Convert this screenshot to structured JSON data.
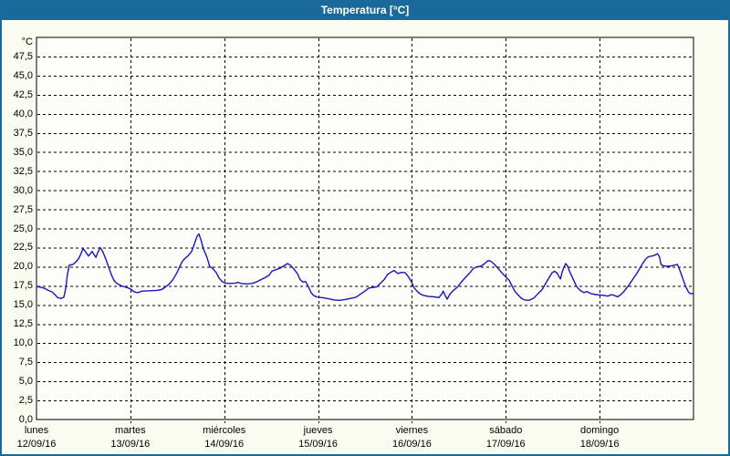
{
  "window": {
    "title": "Temperatura [°C]"
  },
  "colors": {
    "titlebar": "#1a699b",
    "window_border": "#1a699b",
    "content_bg": "#fafcf1",
    "plot_bg": "#fdfefa",
    "grid": "#000000",
    "line": "#1616bb",
    "title_text": "#ffffff"
  },
  "chart_data": {
    "type": "line",
    "title": "Temperatura [°C]",
    "y_unit_label": "°C",
    "ylim": [
      0,
      50
    ],
    "x_hours_range": [
      0,
      168
    ],
    "grid": "dashed",
    "legend": "none",
    "y_ticks": {
      "values": [
        0,
        2.5,
        5,
        7.5,
        10,
        12.5,
        15,
        17.5,
        20,
        22.5,
        25,
        27.5,
        30,
        32.5,
        35,
        37.5,
        40,
        42.5,
        45,
        47.5
      ],
      "labels": [
        "0,0",
        "2,5",
        "5,0",
        "7,5",
        "10,0",
        "12,5",
        "15,0",
        "17,5",
        "20,0",
        "22,5",
        "25,0",
        "27,5",
        "30,0",
        "32,5",
        "35,0",
        "37,5",
        "40,0",
        "42,5",
        "45,0",
        "47,5"
      ]
    },
    "x_days": [
      {
        "name": "lunes",
        "date": "12/09/16"
      },
      {
        "name": "martes",
        "date": "13/09/16"
      },
      {
        "name": "miércoles",
        "date": "14/09/16"
      },
      {
        "name": "jueves",
        "date": "15/09/16"
      },
      {
        "name": "viernes",
        "date": "16/09/16"
      },
      {
        "name": "sábado",
        "date": "17/09/16"
      },
      {
        "name": "domingo",
        "date": "18/09/16"
      }
    ],
    "series": [
      {
        "name": "Temperatura",
        "unit": "°C",
        "points": [
          [
            0,
            17.4
          ],
          [
            1.2,
            17.3
          ],
          [
            2.3,
            17.1
          ],
          [
            3,
            16.9
          ],
          [
            4,
            16.7
          ],
          [
            4.8,
            16.3
          ],
          [
            5.4,
            15.95
          ],
          [
            6.3,
            15.85
          ],
          [
            7,
            16.0
          ],
          [
            7.5,
            17.2
          ],
          [
            7.9,
            19.0
          ],
          [
            8.4,
            20.2
          ],
          [
            9.3,
            20.3
          ],
          [
            10,
            20.6
          ],
          [
            10.7,
            21.0
          ],
          [
            11.3,
            21.6
          ],
          [
            11.9,
            22.4
          ],
          [
            12.6,
            21.9
          ],
          [
            13.3,
            21.4
          ],
          [
            13.8,
            21.7
          ],
          [
            14.2,
            22.0
          ],
          [
            14.7,
            21.6
          ],
          [
            15.2,
            21.2
          ],
          [
            15.6,
            21.8
          ],
          [
            16.3,
            22.5
          ],
          [
            17,
            21.9
          ],
          [
            17.7,
            21.0
          ],
          [
            18.4,
            20.0
          ],
          [
            19.1,
            19.0
          ],
          [
            19.8,
            18.2
          ],
          [
            20.5,
            17.8
          ],
          [
            21.7,
            17.5
          ],
          [
            22.9,
            17.3
          ],
          [
            24,
            17.1
          ],
          [
            25,
            16.7
          ],
          [
            25.9,
            16.6
          ],
          [
            27,
            16.8
          ],
          [
            29,
            16.85
          ],
          [
            30.8,
            16.9
          ],
          [
            32,
            17.0
          ],
          [
            32.9,
            17.3
          ],
          [
            34.1,
            17.8
          ],
          [
            35,
            18.4
          ],
          [
            35.9,
            19.2
          ],
          [
            36.6,
            20.0
          ],
          [
            37.3,
            20.7
          ],
          [
            38,
            21.1
          ],
          [
            38.7,
            21.4
          ],
          [
            39.7,
            22.0
          ],
          [
            40.4,
            23.0
          ],
          [
            41,
            23.9
          ],
          [
            41.5,
            24.3
          ],
          [
            42,
            23.6
          ],
          [
            42.7,
            22.3
          ],
          [
            43.6,
            21.2
          ],
          [
            44.3,
            20.0
          ],
          [
            45,
            19.8
          ],
          [
            46,
            19.2
          ],
          [
            46.7,
            18.5
          ],
          [
            47.6,
            18.0
          ],
          [
            48.3,
            17.85
          ],
          [
            49.5,
            17.8
          ],
          [
            50.9,
            17.85
          ],
          [
            51.6,
            17.95
          ],
          [
            52.3,
            17.8
          ],
          [
            53.7,
            17.75
          ],
          [
            55.1,
            17.8
          ],
          [
            56.2,
            18.0
          ],
          [
            57.4,
            18.3
          ],
          [
            58.6,
            18.6
          ],
          [
            59.5,
            18.9
          ],
          [
            60.2,
            19.4
          ],
          [
            61.1,
            19.6
          ],
          [
            62.3,
            19.8
          ],
          [
            63.2,
            20.1
          ],
          [
            64.2,
            20.4
          ],
          [
            64.9,
            20.2
          ],
          [
            65.8,
            19.7
          ],
          [
            66.7,
            19.1
          ],
          [
            67.4,
            18.3
          ],
          [
            68.1,
            18.0
          ],
          [
            68.8,
            18.05
          ],
          [
            69.5,
            17.4
          ],
          [
            70.2,
            16.6
          ],
          [
            70.9,
            16.2
          ],
          [
            71.9,
            16.0
          ],
          [
            73,
            15.95
          ],
          [
            74.7,
            15.8
          ],
          [
            76.1,
            15.65
          ],
          [
            77.5,
            15.6
          ],
          [
            78.9,
            15.7
          ],
          [
            80.3,
            15.85
          ],
          [
            81.7,
            16.0
          ],
          [
            82.8,
            16.4
          ],
          [
            84,
            16.8
          ],
          [
            84.9,
            17.2
          ],
          [
            86.1,
            17.3
          ],
          [
            87,
            17.35
          ],
          [
            87.9,
            17.8
          ],
          [
            88.9,
            18.3
          ],
          [
            89.8,
            19.0
          ],
          [
            90.7,
            19.3
          ],
          [
            91.4,
            19.5
          ],
          [
            92.4,
            19.1
          ],
          [
            93.3,
            19.25
          ],
          [
            94.3,
            19.2
          ],
          [
            95.2,
            18.6
          ],
          [
            95.9,
            18.0
          ],
          [
            96.6,
            17.2
          ],
          [
            97.3,
            16.8
          ],
          [
            98.2,
            16.4
          ],
          [
            99.2,
            16.2
          ],
          [
            100.3,
            16.1
          ],
          [
            101.7,
            16.05
          ],
          [
            102.9,
            15.95
          ],
          [
            103.6,
            16.4
          ],
          [
            104,
            16.8
          ],
          [
            104.5,
            16.2
          ],
          [
            105,
            15.75
          ],
          [
            105.7,
            16.4
          ],
          [
            106.6,
            16.9
          ],
          [
            107.6,
            17.3
          ],
          [
            108.5,
            17.9
          ],
          [
            109.7,
            18.6
          ],
          [
            110.8,
            19.2
          ],
          [
            111.8,
            19.8
          ],
          [
            112.7,
            20.0
          ],
          [
            113.6,
            20.05
          ],
          [
            114.6,
            20.4
          ],
          [
            115.5,
            20.8
          ],
          [
            116.2,
            20.7
          ],
          [
            117.1,
            20.3
          ],
          [
            118,
            19.8
          ],
          [
            119,
            19.2
          ],
          [
            119.9,
            18.7
          ],
          [
            120.9,
            18.2
          ],
          [
            121.6,
            17.5
          ],
          [
            122.3,
            16.8
          ],
          [
            123,
            16.4
          ],
          [
            123.9,
            15.9
          ],
          [
            124.8,
            15.65
          ],
          [
            126,
            15.6
          ],
          [
            127.2,
            15.9
          ],
          [
            128.3,
            16.5
          ],
          [
            129.3,
            17.0
          ],
          [
            130.2,
            17.8
          ],
          [
            131.1,
            18.6
          ],
          [
            131.8,
            19.2
          ],
          [
            132.5,
            19.4
          ],
          [
            133.2,
            19.1
          ],
          [
            133.7,
            18.6
          ],
          [
            134,
            18.4
          ],
          [
            134.4,
            19.3
          ],
          [
            134.8,
            19.8
          ],
          [
            135.3,
            20.4
          ],
          [
            135.8,
            20.1
          ],
          [
            136.3,
            19.4
          ],
          [
            137.2,
            18.4
          ],
          [
            138.1,
            17.4
          ],
          [
            139,
            16.9
          ],
          [
            140,
            16.6
          ],
          [
            140.7,
            16.75
          ],
          [
            141.9,
            16.45
          ],
          [
            143,
            16.35
          ],
          [
            144,
            16.3
          ],
          [
            144.9,
            16.25
          ],
          [
            146.1,
            16.15
          ],
          [
            147,
            16.35
          ],
          [
            147.9,
            16.2
          ],
          [
            148.6,
            16.05
          ],
          [
            149.3,
            16.3
          ],
          [
            150.3,
            16.8
          ],
          [
            151.2,
            17.4
          ],
          [
            151.9,
            17.9
          ],
          [
            152.8,
            18.6
          ],
          [
            153.5,
            19.1
          ],
          [
            154.4,
            19.9
          ],
          [
            155.1,
            20.5
          ],
          [
            155.8,
            21.0
          ],
          [
            156.5,
            21.3
          ],
          [
            157.4,
            21.4
          ],
          [
            158.1,
            21.5
          ],
          [
            158.8,
            21.7
          ],
          [
            159.3,
            21.3
          ],
          [
            159.7,
            20.3
          ],
          [
            160.4,
            20.1
          ],
          [
            161.4,
            20.05
          ],
          [
            162.3,
            20.1
          ],
          [
            163.2,
            20.2
          ],
          [
            163.9,
            20.3
          ],
          [
            164.6,
            19.4
          ],
          [
            165.3,
            18.4
          ],
          [
            166,
            17.4
          ],
          [
            166.7,
            16.7
          ],
          [
            167.2,
            16.45
          ],
          [
            168,
            16.5
          ]
        ]
      }
    ]
  }
}
